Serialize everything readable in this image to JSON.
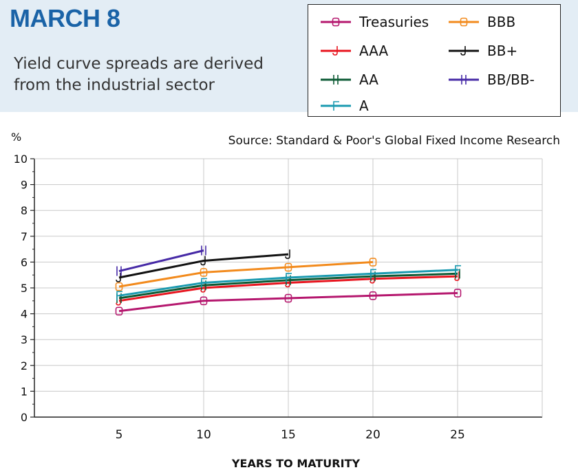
{
  "header": {
    "title": "MARCH 8",
    "subtitle": "Yield curve spreads are derived from the industrial sector"
  },
  "source": "Source: Standard & Poor's Global Fixed Income Research",
  "chart_data": {
    "type": "line",
    "title": "MARCH 8",
    "subtitle": "Yield curve spreads are derived from the industrial sector",
    "xlabel": "YEARS TO MATURITY",
    "ylabel": "%",
    "x": [
      5,
      10,
      15,
      20,
      25
    ],
    "xlim": [
      0,
      30
    ],
    "ylim": [
      0,
      10
    ],
    "yticks": [
      0,
      1,
      2,
      3,
      4,
      5,
      6,
      7,
      8,
      9,
      10
    ],
    "xticks": [
      5,
      10,
      15,
      20,
      25
    ],
    "grid": true,
    "legend": "top-right",
    "series": [
      {
        "name": "Treasuries",
        "color": "#b5176e",
        "marker": "B",
        "values": [
          4.1,
          4.5,
          4.6,
          4.7,
          4.8
        ]
      },
      {
        "name": "AAA",
        "color": "#e8141e",
        "marker": "J",
        "values": [
          4.5,
          5.0,
          5.2,
          5.35,
          5.45
        ]
      },
      {
        "name": "AA",
        "color": "#0c5a34",
        "marker": "H",
        "values": [
          4.6,
          5.1,
          5.3,
          5.45,
          5.55
        ]
      },
      {
        "name": "A",
        "color": "#1a9ab0",
        "marker": "F",
        "values": [
          4.7,
          5.2,
          5.4,
          5.55,
          5.7
        ]
      },
      {
        "name": "BBB",
        "color": "#f28a1c",
        "marker": "B",
        "values": [
          5.05,
          5.6,
          5.8,
          6.0,
          null
        ]
      },
      {
        "name": "BB+",
        "color": "#111111",
        "marker": "J",
        "values": [
          5.4,
          6.05,
          6.3,
          null,
          null
        ]
      },
      {
        "name": "BB/BB-",
        "color": "#4629a6",
        "marker": "H",
        "values": [
          5.65,
          6.45,
          null,
          null,
          null
        ]
      }
    ]
  }
}
